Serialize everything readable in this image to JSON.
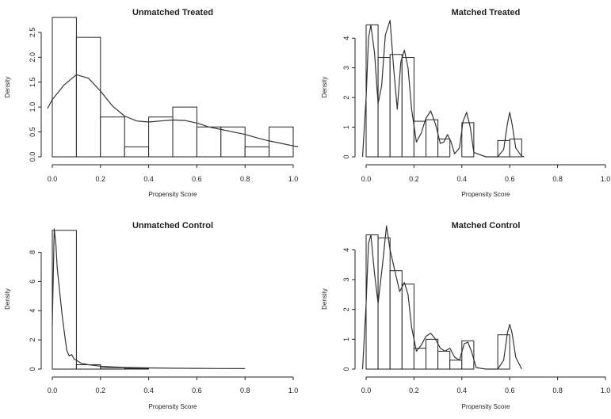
{
  "chart_data": [
    {
      "type": "bar",
      "title": "Unmatched Treated",
      "xlabel": "Propensity Score",
      "ylabel": "Density",
      "xlim": [
        0,
        1
      ],
      "ylim": [
        0,
        2.8
      ],
      "xticks": [
        "0.0",
        "0.2",
        "0.4",
        "0.6",
        "0.8",
        "1.0"
      ],
      "yticks": [
        "0.0",
        "0.5",
        "1.0",
        "1.5",
        "2.0",
        "2.5"
      ],
      "bins": [
        {
          "x0": 0.0,
          "x1": 0.1,
          "density": 2.8
        },
        {
          "x0": 0.1,
          "x1": 0.2,
          "density": 2.4
        },
        {
          "x0": 0.2,
          "x1": 0.3,
          "density": 0.8
        },
        {
          "x0": 0.3,
          "x1": 0.4,
          "density": 0.2
        },
        {
          "x0": 0.4,
          "x1": 0.5,
          "density": 0.8
        },
        {
          "x0": 0.5,
          "x1": 0.6,
          "density": 1.0
        },
        {
          "x0": 0.6,
          "x1": 0.7,
          "density": 0.6
        },
        {
          "x0": 0.7,
          "x1": 0.8,
          "density": 0.6
        },
        {
          "x0": 0.8,
          "x1": 0.9,
          "density": 0.2
        },
        {
          "x0": 0.9,
          "x1": 1.0,
          "density": 0.6
        }
      ],
      "density_curve": {
        "x": [
          -0.02,
          0.0,
          0.05,
          0.1,
          0.15,
          0.2,
          0.25,
          0.3,
          0.35,
          0.4,
          0.45,
          0.5,
          0.55,
          0.6,
          0.65,
          0.7,
          0.75,
          0.8,
          0.85,
          0.9,
          0.95,
          1.0,
          1.02
        ],
        "y": [
          0.97,
          1.15,
          1.45,
          1.65,
          1.58,
          1.32,
          1.02,
          0.82,
          0.72,
          0.7,
          0.72,
          0.74,
          0.73,
          0.68,
          0.6,
          0.55,
          0.5,
          0.45,
          0.38,
          0.32,
          0.27,
          0.22,
          0.2
        ]
      }
    },
    {
      "type": "bar",
      "title": "Matched Treated",
      "xlabel": "Propensity Score",
      "ylabel": "Density",
      "xlim": [
        0,
        1
      ],
      "ylim": [
        0,
        4.7
      ],
      "xticks": [
        "0.0",
        "0.2",
        "0.4",
        "0.6",
        "0.8",
        "1.0"
      ],
      "yticks": [
        "0",
        "1",
        "2",
        "3",
        "4"
      ],
      "bins": [
        {
          "x0": 0.0,
          "x1": 0.05,
          "density": 4.45
        },
        {
          "x0": 0.05,
          "x1": 0.1,
          "density": 3.35
        },
        {
          "x0": 0.1,
          "x1": 0.15,
          "density": 3.45
        },
        {
          "x0": 0.15,
          "x1": 0.2,
          "density": 3.35
        },
        {
          "x0": 0.2,
          "x1": 0.25,
          "density": 1.2
        },
        {
          "x0": 0.25,
          "x1": 0.3,
          "density": 1.25
        },
        {
          "x0": 0.3,
          "x1": 0.35,
          "density": 0.6
        },
        {
          "x0": 0.35,
          "x1": 0.4,
          "density": 0.0
        },
        {
          "x0": 0.4,
          "x1": 0.45,
          "density": 1.15
        },
        {
          "x0": 0.45,
          "x1": 0.5,
          "density": 0.0
        },
        {
          "x0": 0.5,
          "x1": 0.55,
          "density": 0.0
        },
        {
          "x0": 0.55,
          "x1": 0.6,
          "density": 0.55
        },
        {
          "x0": 0.6,
          "x1": 0.65,
          "density": 0.6
        }
      ],
      "density_curve": {
        "x": [
          -0.015,
          0.0,
          0.01,
          0.02,
          0.035,
          0.05,
          0.065,
          0.08,
          0.1,
          0.115,
          0.13,
          0.145,
          0.16,
          0.175,
          0.19,
          0.21,
          0.23,
          0.25,
          0.27,
          0.29,
          0.31,
          0.325,
          0.34,
          0.355,
          0.37,
          0.39,
          0.405,
          0.42,
          0.435,
          0.45,
          0.5,
          0.55,
          0.575,
          0.59,
          0.6,
          0.61,
          0.625,
          0.65,
          0.66
        ],
        "y": [
          0.0,
          2.0,
          4.0,
          4.45,
          3.5,
          1.8,
          2.4,
          4.1,
          4.6,
          3.0,
          1.6,
          3.2,
          3.6,
          3.0,
          1.6,
          0.5,
          0.8,
          1.3,
          1.55,
          1.1,
          0.45,
          0.5,
          0.75,
          0.5,
          0.1,
          0.3,
          1.2,
          1.5,
          1.0,
          0.15,
          0.0,
          0.0,
          0.25,
          1.1,
          1.5,
          1.1,
          0.3,
          0.02,
          0.0
        ]
      }
    },
    {
      "type": "bar",
      "title": "Unmatched Control",
      "xlabel": "Propensity Score",
      "ylabel": "Density",
      "xlim": [
        0,
        1
      ],
      "ylim": [
        0,
        9.6
      ],
      "xticks": [
        "0.0",
        "0.2",
        "0.4",
        "0.6",
        "0.8",
        "1.0"
      ],
      "yticks": [
        "0",
        "2",
        "4",
        "6",
        "8"
      ],
      "bins": [
        {
          "x0": 0.0,
          "x1": 0.1,
          "density": 9.5
        },
        {
          "x0": 0.1,
          "x1": 0.2,
          "density": 0.3
        },
        {
          "x0": 0.2,
          "x1": 0.3,
          "density": 0.1
        },
        {
          "x0": 0.3,
          "x1": 0.4,
          "density": 0.05
        }
      ],
      "density_curve": {
        "x": [
          0.0,
          0.008,
          0.015,
          0.02,
          0.03,
          0.04,
          0.05,
          0.06,
          0.07,
          0.08,
          0.09,
          0.1,
          0.12,
          0.15,
          0.2,
          0.25,
          0.3,
          0.4,
          0.5,
          0.6,
          0.7,
          0.8
        ],
        "y": [
          3.0,
          9.6,
          8.5,
          7.0,
          5.4,
          3.8,
          2.5,
          1.3,
          0.9,
          1.0,
          0.7,
          0.6,
          0.4,
          0.3,
          0.2,
          0.15,
          0.12,
          0.08,
          0.06,
          0.05,
          0.04,
          0.03
        ]
      }
    },
    {
      "type": "bar",
      "title": "Matched Control",
      "xlabel": "Propensity Score",
      "ylabel": "Density",
      "xlim": [
        0,
        1
      ],
      "ylim": [
        0,
        4.7
      ],
      "xticks": [
        "0.0",
        "0.2",
        "0.4",
        "0.6",
        "0.8",
        "1.0"
      ],
      "yticks": [
        "0",
        "1",
        "2",
        "3",
        "4"
      ],
      "bins": [
        {
          "x0": 0.0,
          "x1": 0.05,
          "density": 4.5
        },
        {
          "x0": 0.05,
          "x1": 0.1,
          "density": 4.4
        },
        {
          "x0": 0.1,
          "x1": 0.15,
          "density": 3.3
        },
        {
          "x0": 0.15,
          "x1": 0.2,
          "density": 2.85
        },
        {
          "x0": 0.2,
          "x1": 0.25,
          "density": 0.7
        },
        {
          "x0": 0.25,
          "x1": 0.3,
          "density": 1.0
        },
        {
          "x0": 0.3,
          "x1": 0.35,
          "density": 0.6
        },
        {
          "x0": 0.35,
          "x1": 0.4,
          "density": 0.3
        },
        {
          "x0": 0.4,
          "x1": 0.45,
          "density": 0.95
        },
        {
          "x0": 0.45,
          "x1": 0.5,
          "density": 0.0
        },
        {
          "x0": 0.5,
          "x1": 0.55,
          "density": 0.0
        },
        {
          "x0": 0.55,
          "x1": 0.6,
          "density": 1.15
        }
      ],
      "density_curve": {
        "x": [
          -0.015,
          0.0,
          0.01,
          0.02,
          0.035,
          0.05,
          0.07,
          0.085,
          0.1,
          0.12,
          0.14,
          0.16,
          0.175,
          0.19,
          0.21,
          0.23,
          0.25,
          0.27,
          0.29,
          0.31,
          0.33,
          0.35,
          0.37,
          0.39,
          0.41,
          0.425,
          0.44,
          0.46,
          0.5,
          0.55,
          0.575,
          0.59,
          0.6,
          0.61,
          0.625,
          0.65
        ],
        "y": [
          0.0,
          2.2,
          4.2,
          4.5,
          3.2,
          2.2,
          3.6,
          4.8,
          4.0,
          3.3,
          2.6,
          2.9,
          2.5,
          1.4,
          0.6,
          0.8,
          1.1,
          1.2,
          1.0,
          0.7,
          0.6,
          0.7,
          0.4,
          0.3,
          0.85,
          0.9,
          0.6,
          0.05,
          0.0,
          0.0,
          0.3,
          1.2,
          1.5,
          1.2,
          0.4,
          0.0
        ]
      }
    }
  ]
}
